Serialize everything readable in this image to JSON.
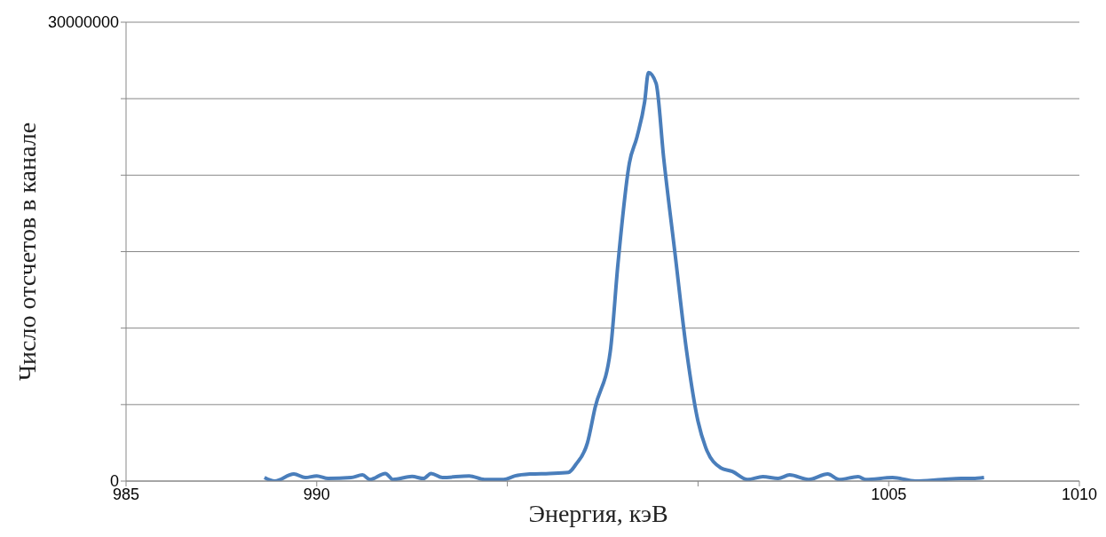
{
  "chart_data": {
    "type": "line",
    "xlabel": "Энергия, кэВ",
    "ylabel": "Число отсчетов в канале",
    "x": [
      988.63,
      988.9,
      989.4,
      989.7,
      990.0,
      990.3,
      990.9,
      991.2,
      991.4,
      991.8,
      992.0,
      992.5,
      992.8,
      993.0,
      993.3,
      994.0,
      994.4,
      994.9,
      995.2,
      995.6,
      996.1,
      996.6,
      996.8,
      997.1,
      997.3,
      997.7,
      997.9,
      998.2,
      998.4,
      998.6,
      998.7,
      998.9,
      999.1,
      999.4,
      999.7,
      1000.0,
      1000.2,
      1000.6,
      1000.9,
      1001.3,
      1001.7,
      1002.1,
      1002.4,
      1002.9,
      1003.4,
      1003.7,
      1004.2,
      1004.4,
      1005.1,
      1005.7,
      1006.4,
      1006.9,
      1007.2,
      1007.5
    ],
    "series": [
      {
        "color": "#4a7ebb",
        "values": [
          230000,
          0,
          460000,
          230000,
          340000,
          170000,
          230000,
          400000,
          100000,
          500000,
          100000,
          300000,
          170000,
          500000,
          230000,
          340000,
          100000,
          100000,
          340000,
          460000,
          500000,
          570000,
          1100000,
          2500000,
          4800000,
          8500000,
          14200000,
          20800000,
          22500000,
          24800000,
          26700000,
          26000000,
          21100000,
          14800000,
          8500000,
          3900000,
          2200000,
          860000,
          630000,
          100000,
          290000,
          170000,
          400000,
          100000,
          460000,
          100000,
          290000,
          100000,
          230000,
          0,
          100000,
          170000,
          170000,
          230000
        ]
      }
    ],
    "xlim": [
      985,
      1010
    ],
    "xticks": [
      985,
      990,
      {
        "value": 995,
        "label": null
      },
      {
        "value": 1000,
        "label": null
      },
      1005,
      1010
    ],
    "ylim": [
      0,
      30000000
    ],
    "yticks": [
      0,
      {
        "value": 5000000,
        "label": null
      },
      {
        "value": 10000000,
        "label": null
      },
      {
        "value": 15000000,
        "label": null
      },
      {
        "value": 20000000,
        "label": null
      },
      {
        "value": 25000000,
        "label": null
      },
      30000000
    ],
    "grid": "y",
    "legend": false,
    "marker": "none",
    "line_style": "solid"
  }
}
